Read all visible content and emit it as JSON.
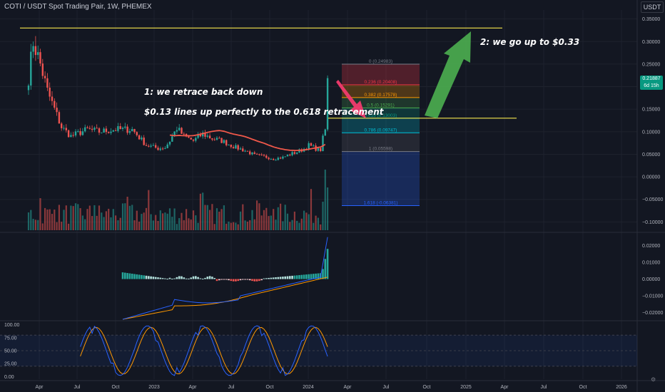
{
  "header": {
    "title": "COTI / USDT Spot Trading Pair, 1W, PHEMEX",
    "currency": "USDT"
  },
  "last_price": {
    "value": "0.21887",
    "countdown": "6d 15h",
    "color": "#089981"
  },
  "annotations": {
    "note1": "1: we retrace back down",
    "note2": "$0.13 lines up perfectly to the 0.618 retracement",
    "note3": "2: we go up to $0.33"
  },
  "colors": {
    "background": "#131722",
    "up": "#26a69a",
    "down": "#ef5350",
    "ma": "#f0584a",
    "level_line": "#f5e64c",
    "arrow_up": "#4caf50",
    "arrow_down": "#f23a6e",
    "macd": "#2962ff",
    "signal": "#ff9800"
  },
  "chart_data": [
    {
      "type": "candlestick",
      "panel": "price",
      "y_unit": "USDT",
      "ylim": [
        -0.12,
        0.37
      ],
      "y_ticks": [
        0.35,
        0.3,
        0.25,
        0.2,
        0.15,
        0.1,
        0.05,
        0.0,
        -0.05,
        -0.1
      ],
      "y_tick_labels": [
        "0.35000",
        "0.30000",
        "0.25000",
        "0.20000",
        "0.15000",
        "0.10000",
        "0.05000",
        "0.00000",
        "−0.05000",
        "−0.10000"
      ],
      "x_tick_labels": [
        "Apr",
        "Jul",
        "Oct",
        "2023",
        "Apr",
        "Jul",
        "Oct",
        "2024",
        "Apr",
        "Jul",
        "Oct",
        "2025",
        "Apr",
        "Jul",
        "Oct",
        "2026"
      ],
      "waypoints_close": [
        [
          0,
          0.22
        ],
        [
          2,
          0.3
        ],
        [
          5,
          0.25
        ],
        [
          8,
          0.19
        ],
        [
          11,
          0.15
        ],
        [
          14,
          0.11
        ],
        [
          18,
          0.09
        ],
        [
          25,
          0.105
        ],
        [
          30,
          0.1
        ],
        [
          37,
          0.105
        ],
        [
          44,
          0.105
        ],
        [
          50,
          0.07
        ],
        [
          55,
          0.063
        ],
        [
          58,
          0.065
        ],
        [
          60,
          0.08
        ],
        [
          63,
          0.108
        ],
        [
          66,
          0.09
        ],
        [
          70,
          0.08
        ],
        [
          74,
          0.095
        ],
        [
          78,
          0.085
        ],
        [
          82,
          0.08
        ],
        [
          88,
          0.065
        ],
        [
          92,
          0.058
        ],
        [
          96,
          0.048
        ],
        [
          100,
          0.045
        ],
        [
          104,
          0.04
        ],
        [
          108,
          0.043
        ],
        [
          111,
          0.05
        ],
        [
          114,
          0.055
        ],
        [
          117,
          0.062
        ],
        [
          119,
          0.07
        ],
        [
          121,
          0.065
        ],
        [
          123,
          0.06
        ],
        [
          124,
          0.06
        ],
        [
          125,
          0.085
        ],
        [
          126,
          0.105
        ],
        [
          127,
          0.218
        ]
      ],
      "moving_average_color": "#f0584a",
      "horizontal_levels": [
        0.33,
        0.13
      ]
    },
    {
      "type": "fibonacci_retracement",
      "panel": "price",
      "levels": [
        {
          "ratio": "0",
          "price": "0.24983",
          "value": 0.24983,
          "color": "#787b86"
        },
        {
          "ratio": "0.236",
          "price": "0.20408",
          "value": 0.20408,
          "color": "#f23645"
        },
        {
          "ratio": "0.382",
          "price": "0.17578",
          "value": 0.17578,
          "color": "#ff9800"
        },
        {
          "ratio": "0.5",
          "price": "0.15291",
          "value": 0.15291,
          "color": "#4caf50"
        },
        {
          "ratio": "0.618",
          "price": "0.13003",
          "value": 0.13003,
          "color": "#089981"
        },
        {
          "ratio": "0.786",
          "price": "0.09747",
          "value": 0.09747,
          "color": "#00bcd4"
        },
        {
          "ratio": "1",
          "price": "0.05598",
          "value": 0.05598,
          "color": "#787b86"
        },
        {
          "ratio": "1.618",
          "price": "-0.06381",
          "value": -0.06381,
          "color": "#2962ff"
        }
      ]
    },
    {
      "type": "bar",
      "panel": "volume",
      "note": "weekly volume, colored by candle direction"
    },
    {
      "type": "line+histogram",
      "panel": "macd",
      "ylim": [
        -0.024,
        0.027
      ],
      "y_ticks": [
        0.02,
        0.01,
        0.0,
        -0.01,
        -0.02
      ],
      "y_tick_labels": [
        "0.02000",
        "0.01000",
        "0.00000",
        "−0.01000",
        "−0.02000"
      ]
    },
    {
      "type": "line",
      "panel": "stochastic_rsi",
      "ylim": [
        -5,
        105
      ],
      "y_ticks": [
        100,
        75,
        50,
        25,
        0
      ],
      "y_tick_labels": [
        "100.00",
        "75.00",
        "50.00",
        "25.00",
        "0.00"
      ],
      "band": [
        20,
        80
      ]
    }
  ]
}
